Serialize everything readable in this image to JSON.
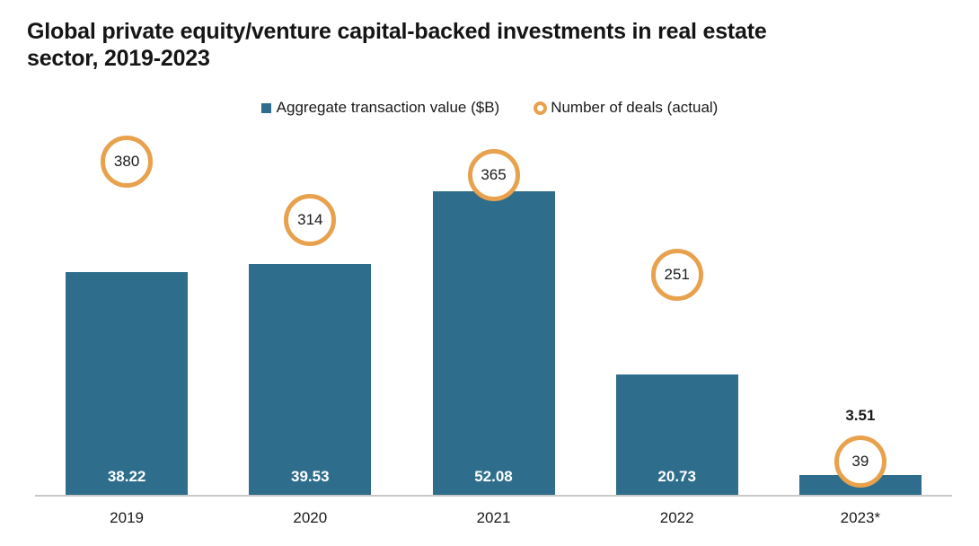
{
  "title": {
    "lines": [
      "Global private equity/venture capital-backed investments in real estate",
      "sector, 2019-2023"
    ]
  },
  "legend": {
    "items": [
      {
        "label": "Aggregate transaction value ($B)",
        "marker": "square-icon",
        "color": "#2E6D8B"
      },
      {
        "label": "Number of deals (actual)",
        "marker": "ring-icon",
        "color": "#E8A14D"
      }
    ]
  },
  "chart_data": {
    "type": "bar",
    "title": "Global private equity/venture capital-backed investments in real estate sector, 2019-2023",
    "categories": [
      "2019",
      "2020",
      "2021",
      "2022",
      "2023*"
    ],
    "series": [
      {
        "name": "Aggregate transaction value ($B)",
        "kind": "bar",
        "values": [
          38.22,
          39.53,
          52.08,
          20.73,
          3.51
        ],
        "value_labels": [
          "38.22",
          "39.53",
          "52.08",
          "20.73",
          "3.51"
        ],
        "color": "#2E6D8B"
      },
      {
        "name": "Number of deals (actual)",
        "kind": "circle-marker",
        "values": [
          380,
          314,
          365,
          251,
          39
        ],
        "value_labels": [
          "380",
          "314",
          "365",
          "251",
          "39"
        ],
        "color": "#E8A14D"
      }
    ],
    "xlabel": "",
    "ylabel": "",
    "value_axis_range": [
      0,
      64
    ],
    "deals_axis_range": [
      0,
      426
    ],
    "grid": false,
    "legend_position": "top-center"
  },
  "colors": {
    "bar": "#2E6D8B",
    "deal_ring": "#E8A14D",
    "text": "#1A1A1A",
    "bar_label_inside": "#FFFFFF",
    "axis_line": "#C9C9C9",
    "background": "#FFFFFF"
  }
}
